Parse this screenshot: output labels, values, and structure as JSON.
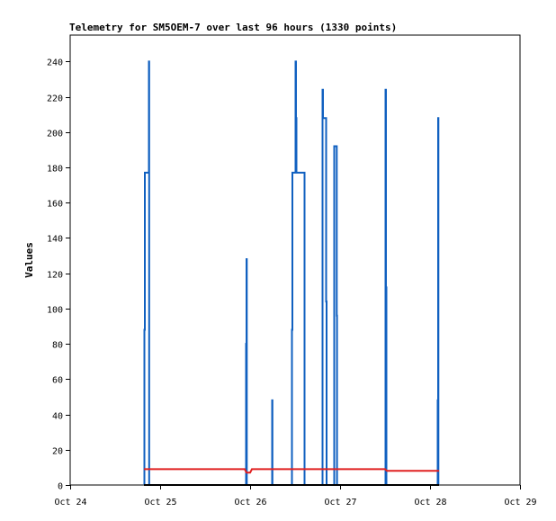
{
  "chart_data": {
    "type": "line",
    "title": "Telemetry for SM5OEM-7 over last 96 hours (1330 points)",
    "xlabel": "",
    "ylabel": "Values",
    "xlim": [
      0,
      5
    ],
    "ylim": [
      0,
      255
    ],
    "grid": false,
    "x_ticks": [
      {
        "x": 0,
        "label": "Oct 24"
      },
      {
        "x": 1,
        "label": "Oct 25"
      },
      {
        "x": 2,
        "label": "Oct 26"
      },
      {
        "x": 3,
        "label": "Oct 27"
      },
      {
        "x": 4,
        "label": "Oct 28"
      },
      {
        "x": 5,
        "label": "Oct 29"
      }
    ],
    "y_ticks": [
      0,
      20,
      40,
      60,
      80,
      100,
      120,
      140,
      160,
      180,
      200,
      220,
      240
    ],
    "series": [
      {
        "color": "#1060c0",
        "step": true,
        "points": [
          [
            0.82,
            0
          ],
          [
            0.825,
            88
          ],
          [
            0.83,
            177
          ],
          [
            0.87,
            177
          ],
          [
            0.875,
            240
          ],
          [
            0.878,
            0
          ],
          [
            1.95,
            0
          ],
          [
            1.955,
            80
          ],
          [
            1.96,
            128
          ],
          [
            1.963,
            0
          ],
          [
            2.24,
            0
          ],
          [
            2.245,
            48
          ],
          [
            2.248,
            0
          ],
          [
            2.46,
            0
          ],
          [
            2.465,
            88
          ],
          [
            2.47,
            177
          ],
          [
            2.5,
            177
          ],
          [
            2.505,
            240
          ],
          [
            2.51,
            208
          ],
          [
            2.515,
            177
          ],
          [
            2.6,
            177
          ],
          [
            2.605,
            0
          ],
          [
            2.8,
            0
          ],
          [
            2.805,
            224
          ],
          [
            2.81,
            208
          ],
          [
            2.84,
            208
          ],
          [
            2.845,
            104
          ],
          [
            2.85,
            0
          ],
          [
            2.93,
            0
          ],
          [
            2.935,
            192
          ],
          [
            2.96,
            192
          ],
          [
            2.963,
            96
          ],
          [
            2.966,
            0
          ],
          [
            3.5,
            0
          ],
          [
            3.505,
            224
          ],
          [
            3.51,
            112
          ],
          [
            3.515,
            0
          ],
          [
            4.08,
            0
          ],
          [
            4.085,
            48
          ],
          [
            4.09,
            208
          ],
          [
            4.093,
            0
          ]
        ]
      },
      {
        "color": "#e02020",
        "step": false,
        "points": [
          [
            0.82,
            9
          ],
          [
            1.94,
            9
          ],
          [
            1.96,
            7
          ],
          [
            2.0,
            7
          ],
          [
            2.02,
            9
          ],
          [
            3.5,
            9
          ],
          [
            3.52,
            8
          ],
          [
            4.1,
            8
          ]
        ]
      },
      {
        "color": "#000000",
        "step": false,
        "points": [
          [
            0.82,
            0
          ],
          [
            4.1,
            0
          ]
        ]
      }
    ]
  }
}
